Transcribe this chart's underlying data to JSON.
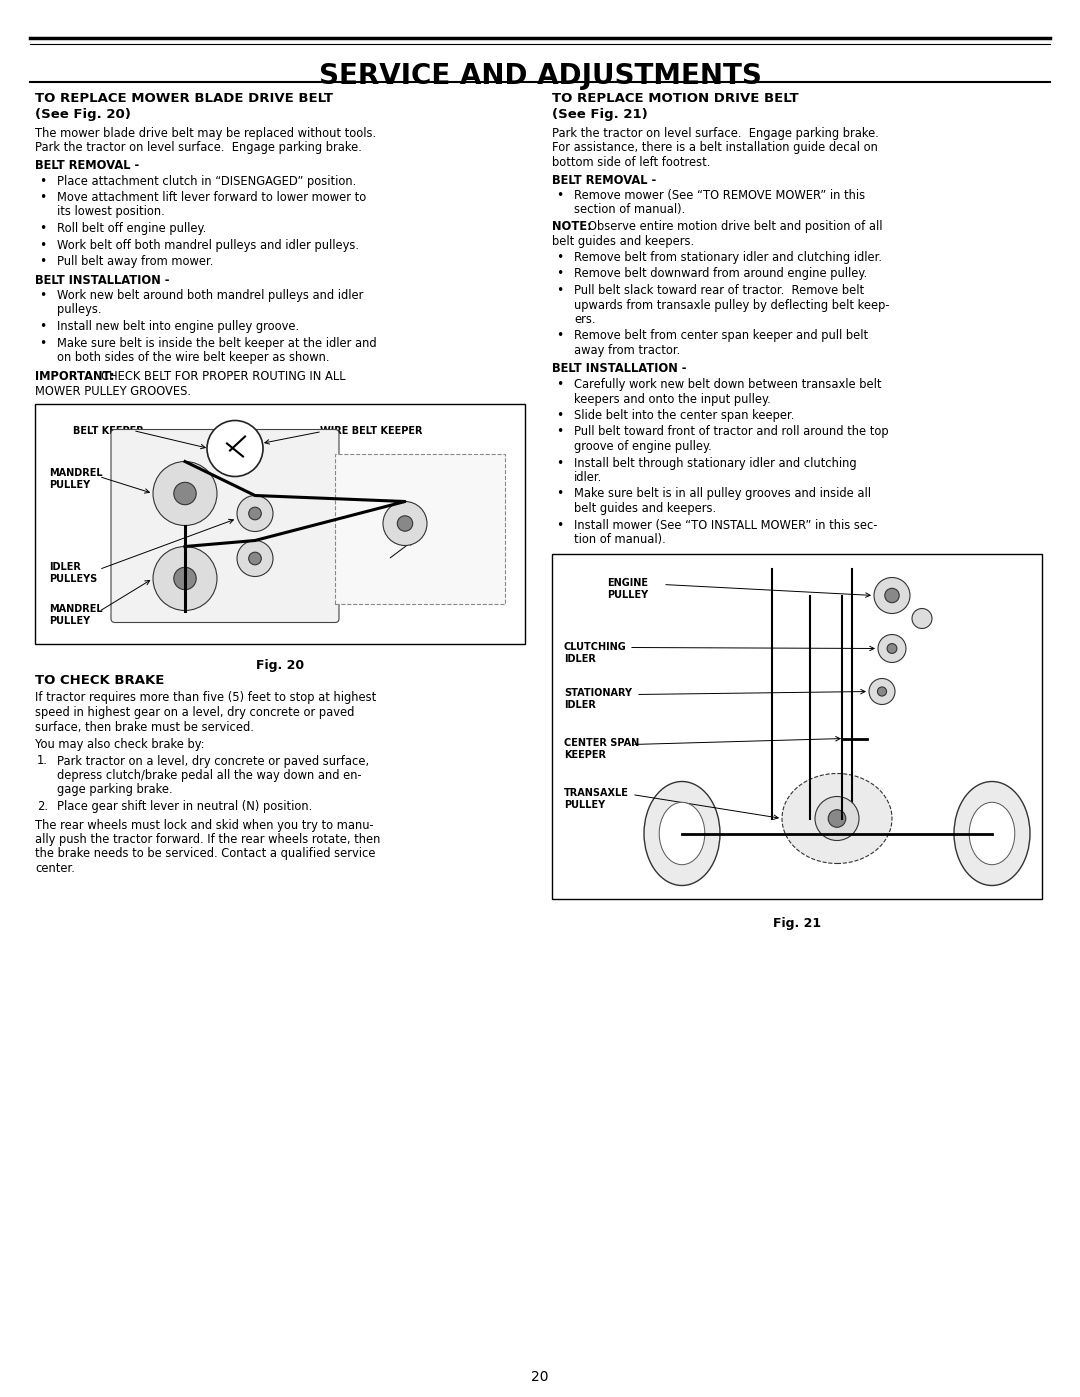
{
  "title": "SERVICE AND ADJUSTMENTS",
  "page_number": "20",
  "bg_color": "#ffffff",
  "section1_title_line1": "TO REPLACE MOWER BLADE DRIVE BELT",
  "section1_title_line2": "(See Fig. 20)",
  "section1_intro": "The mower blade drive belt may be replaced without tools.\nPark the tractor on level surface.  Engage parking brake.",
  "section1_removal_header": "BELT REMOVAL -",
  "section1_removal_bullets": [
    "Place attachment clutch in “DISENGAGED” position.",
    "Move attachment lift lever forward to lower mower to\nits lowest position.",
    "Roll belt off engine pulley.",
    "Work belt off both mandrel pulleys and idler pulleys.",
    "Pull belt away from mower."
  ],
  "section1_install_header": "BELT INSTALLATION -",
  "section1_install_bullets": [
    "Work new belt around both mandrel pulleys and idler\npulleys.",
    "Install new belt into engine pulley groove.",
    "Make sure belt is inside the belt keeper at the idler and\non both sides of the wire belt keeper as shown."
  ],
  "section1_important_bold": "IMPORTANT:",
  "section1_important_rest": " CHECK BELT FOR PROPER ROUTING IN ALL\nMOWER PULLEY GROOVES.",
  "fig20_caption": "Fig. 20",
  "section2_title": "TO CHECK BRAKE",
  "section2_text1": "If tractor requires more than five (5) feet to stop at highest\nspeed in highest gear on a level, dry concrete or paved\nsurface, then brake must be serviced.",
  "section2_text2": "You may also check brake by:",
  "section2_numbered": [
    "Park tractor on a level, dry concrete or paved surface,\ndepress clutch/brake pedal all the way down and en-\ngage parking brake.",
    "Place gear shift lever in neutral (N) position."
  ],
  "section2_text3": "The rear wheels must lock and skid when you try to manu-\nally push the tractor forward. If the rear wheels rotate, then\nthe brake needs to be serviced. Contact a qualified service\ncenter.",
  "section3_title_line1": "TO REPLACE MOTION DRIVE BELT",
  "section3_title_line2": "(See Fig. 21)",
  "section3_intro": "Park the tractor on level surface.  Engage parking brake.\nFor assistance, there is a belt installation guide decal on\nbottom side of left footrest.",
  "section3_removal_header": "BELT REMOVAL -",
  "section3_removal_bullet1_line1": "Remove mower (See “TO REMOVE MOWER” in this",
  "section3_removal_bullet1_line2": "section of manual).",
  "section3_note_bold": "NOTE:",
  "section3_note_rest": " Observe entire motion drive belt and position of all\nbelt guides and keepers.",
  "section3_removal_bullets": [
    "Remove belt from stationary idler and clutching idler.",
    "Remove belt downward from around engine pulley.",
    "Pull belt slack toward rear of tractor.  Remove belt\nupwards from transaxle pulley by deflecting belt keep-\ners.",
    "Remove belt from center span keeper and pull belt\naway from tractor."
  ],
  "section3_install_header": "BELT INSTALLATION -",
  "section3_install_bullets": [
    "Carefully work new belt down between transaxle belt\nkeepers and onto the input pulley.",
    "Slide belt into the center span keeper.",
    "Pull belt toward front of tractor and roll around the top\ngroove of engine pulley.",
    "Install belt through stationary idler and clutching\nidler.",
    "Make sure belt is in all pulley grooves and inside all\nbelt guides and keepers.",
    "Install mower (See “TO INSTALL MOWER” in this sec-\ntion of manual)."
  ],
  "fig21_caption": "Fig. 21"
}
